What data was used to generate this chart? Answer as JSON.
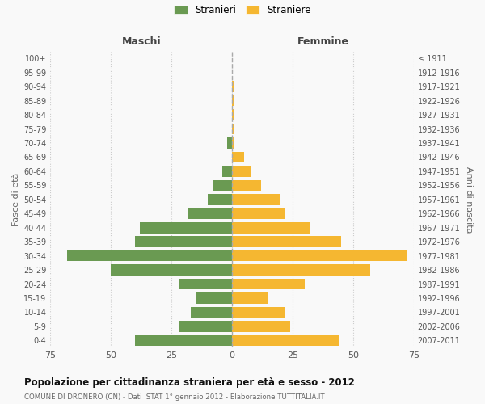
{
  "age_groups": [
    "0-4",
    "5-9",
    "10-14",
    "15-19",
    "20-24",
    "25-29",
    "30-34",
    "35-39",
    "40-44",
    "45-49",
    "50-54",
    "55-59",
    "60-64",
    "65-69",
    "70-74",
    "75-79",
    "80-84",
    "85-89",
    "90-94",
    "95-99",
    "100+"
  ],
  "birth_years": [
    "2007-2011",
    "2002-2006",
    "1997-2001",
    "1992-1996",
    "1987-1991",
    "1982-1986",
    "1977-1981",
    "1972-1976",
    "1967-1971",
    "1962-1966",
    "1957-1961",
    "1952-1956",
    "1947-1951",
    "1942-1946",
    "1937-1941",
    "1932-1936",
    "1927-1931",
    "1922-1926",
    "1917-1921",
    "1912-1916",
    "≤ 1911"
  ],
  "maschi": [
    40,
    22,
    17,
    15,
    22,
    50,
    68,
    40,
    38,
    18,
    10,
    8,
    4,
    0,
    2,
    0,
    0,
    0,
    0,
    0,
    0
  ],
  "femmine": [
    44,
    24,
    22,
    15,
    30,
    57,
    72,
    45,
    32,
    22,
    20,
    12,
    8,
    5,
    1,
    1,
    1,
    1,
    1,
    0,
    0
  ],
  "male_color": "#6a9a52",
  "female_color": "#f5b731",
  "background_color": "#f9f9f9",
  "grid_color": "#cccccc",
  "title": "Popolazione per cittadinanza straniera per età e sesso - 2012",
  "subtitle": "COMUNE DI DRONERO (CN) - Dati ISTAT 1° gennaio 2012 - Elaborazione TUTTITALIA.IT",
  "xlabel_left": "Maschi",
  "xlabel_right": "Femmine",
  "ylabel_left": "Fasce di età",
  "ylabel_right": "Anni di nascita",
  "xlim": 75,
  "legend_stranieri": "Stranieri",
  "legend_straniere": "Straniere"
}
